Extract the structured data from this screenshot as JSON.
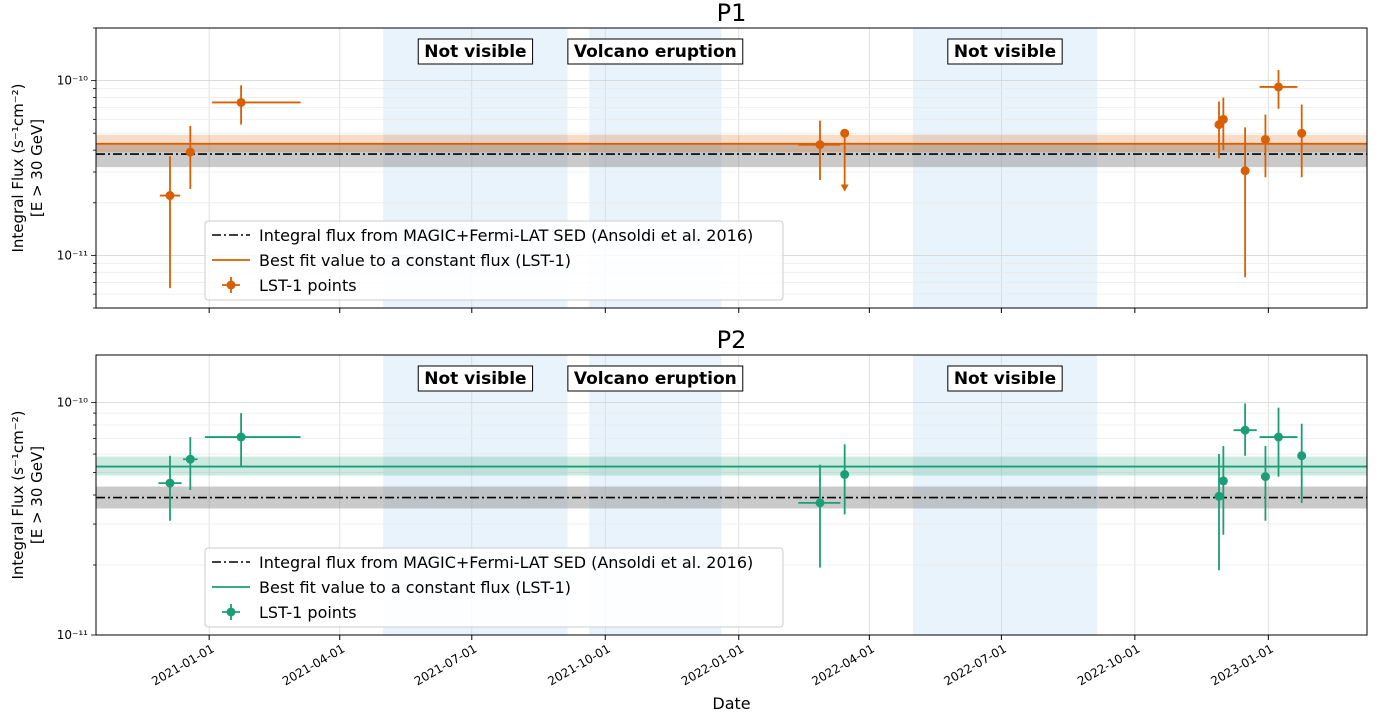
{
  "xlabel": "Date",
  "x_ticks": [
    "2021-01-01",
    "2021-04-01",
    "2021-07-01",
    "2021-10-01",
    "2022-01-01",
    "2022-04-01",
    "2022-07-01",
    "2022-10-01",
    "2023-01-01"
  ],
  "x_range": [
    "2020-10-15",
    "2023-03-10"
  ],
  "shaded_regions": [
    {
      "start": "2021-05-01",
      "end": "2021-09-05",
      "label": "Not visible",
      "color": "#e8f3fb"
    },
    {
      "start": "2021-09-20",
      "end": "2021-12-20",
      "label": "Volcano eruption",
      "color": "#e8f3fb"
    },
    {
      "start": "2022-05-01",
      "end": "2022-09-05",
      "label": "Not visible",
      "color": "#e8f3fb"
    }
  ],
  "legend": {
    "reference": "Integral flux from MAGIC+Fermi-LAT SED (Ansoldi et al. 2016)",
    "fit": "Best fit value to a constant flux (LST-1)",
    "points": "LST-1 points"
  },
  "chart_data": [
    {
      "type": "scatter",
      "title": "P1",
      "ylabel": "Integral Flux (s⁻¹cm⁻²)",
      "ylabel2": "[E > 30 GeV]",
      "yscale": "log",
      "ylim": [
        5e-12,
        2e-10
      ],
      "y_ticks": [
        {
          "v": 1e-11,
          "label": "10⁻¹¹"
        },
        {
          "v": 1e-10,
          "label": "10⁻¹⁰"
        }
      ],
      "color": "#d95f02",
      "reference": {
        "value": 3.8e-11,
        "band": [
          3.2e-11,
          4.3e-11
        ]
      },
      "fit": {
        "value": 4.35e-11,
        "band": [
          3.9e-11,
          4.9e-11
        ]
      },
      "points": [
        {
          "x": "2020-12-05",
          "xlo": "2020-11-28",
          "xhi": "2020-12-12",
          "y": 2.2e-11,
          "ylo": 6.5e-12,
          "yhi": 3.7e-11
        },
        {
          "x": "2020-12-19",
          "y": 3.9e-11,
          "ylo": 2.4e-11,
          "yhi": 5.5e-11
        },
        {
          "x": "2021-01-23",
          "xlo": "2021-01-03",
          "xhi": "2021-03-05",
          "y": 7.5e-11,
          "ylo": 5.6e-11,
          "yhi": 9.4e-11
        },
        {
          "x": "2022-02-26",
          "xlo": "2022-02-11",
          "xhi": "2022-03-12",
          "y": 4.3e-11,
          "ylo": 2.7e-11,
          "yhi": 5.9e-11
        },
        {
          "x": "2022-03-15",
          "y": 5e-11,
          "ul": true,
          "yhi_ul": 2.35e-11
        },
        {
          "x": "2022-11-28",
          "y": 5.6e-11,
          "ylo": 3.6e-11,
          "yhi": 7.6e-11
        },
        {
          "x": "2022-12-01",
          "y": 6e-11,
          "ylo": 4e-11,
          "yhi": 8e-11
        },
        {
          "x": "2022-12-16",
          "y": 3.05e-11,
          "ylo": 7.5e-12,
          "yhi": 5.4e-11
        },
        {
          "x": "2022-12-30",
          "y": 4.6e-11,
          "ylo": 2.8e-11,
          "yhi": 6.4e-11
        },
        {
          "x": "2023-01-08",
          "xlo": "2022-12-26",
          "xhi": "2023-01-21",
          "y": 9.2e-11,
          "ylo": 6.9e-11,
          "yhi": 1.15e-10
        },
        {
          "x": "2023-01-24",
          "y": 5e-11,
          "ylo": 2.8e-11,
          "yhi": 7.3e-11
        }
      ]
    },
    {
      "type": "scatter",
      "title": "P2",
      "ylabel": "Integral Flux (s⁻¹cm⁻²)",
      "ylabel2": "[E > 30 GeV]",
      "yscale": "log",
      "ylim": [
        1e-11,
        1.6e-10
      ],
      "y_ticks": [
        {
          "v": 1e-11,
          "label": "10⁻¹¹"
        },
        {
          "v": 1e-10,
          "label": "10⁻¹⁰"
        }
      ],
      "color": "#1b9e77",
      "reference": {
        "value": 3.9e-11,
        "band": [
          3.5e-11,
          4.35e-11
        ]
      },
      "fit": {
        "value": 5.3e-11,
        "band": [
          4.85e-11,
          5.85e-11
        ]
      },
      "points": [
        {
          "x": "2020-12-05",
          "xlo": "2020-11-27",
          "xhi": "2020-12-13",
          "y": 4.5e-11,
          "ylo": 3.1e-11,
          "yhi": 5.9e-11
        },
        {
          "x": "2020-12-19",
          "xlo": "2020-12-14",
          "xhi": "2020-12-24",
          "y": 5.7e-11,
          "ylo": 4.2e-11,
          "yhi": 7.1e-11
        },
        {
          "x": "2021-01-23",
          "xlo": "2020-12-29",
          "xhi": "2021-03-05",
          "y": 7.1e-11,
          "ylo": 5.3e-11,
          "yhi": 9e-11
        },
        {
          "x": "2022-02-26",
          "xlo": "2022-02-11",
          "xhi": "2022-03-12",
          "y": 3.7e-11,
          "ylo": 1.95e-11,
          "yhi": 5.4e-11
        },
        {
          "x": "2022-03-15",
          "y": 4.9e-11,
          "ylo": 3.3e-11,
          "yhi": 6.6e-11
        },
        {
          "x": "2022-11-28",
          "y": 3.95e-11,
          "ylo": 1.9e-11,
          "yhi": 6e-11
        },
        {
          "x": "2022-12-01",
          "y": 4.6e-11,
          "ylo": 2.7e-11,
          "yhi": 6.5e-11
        },
        {
          "x": "2022-12-16",
          "xlo": "2022-12-08",
          "xhi": "2022-12-24",
          "y": 7.6e-11,
          "ylo": 5.9e-11,
          "yhi": 9.9e-11
        },
        {
          "x": "2022-12-30",
          "y": 4.8e-11,
          "ylo": 3.1e-11,
          "yhi": 6.5e-11
        },
        {
          "x": "2023-01-08",
          "xlo": "2022-12-26",
          "xhi": "2023-01-21",
          "y": 7.1e-11,
          "ylo": 4.8e-11,
          "yhi": 9.5e-11
        },
        {
          "x": "2023-01-24",
          "y": 5.9e-11,
          "ylo": 3.7e-11,
          "yhi": 8.1e-11
        }
      ]
    }
  ]
}
